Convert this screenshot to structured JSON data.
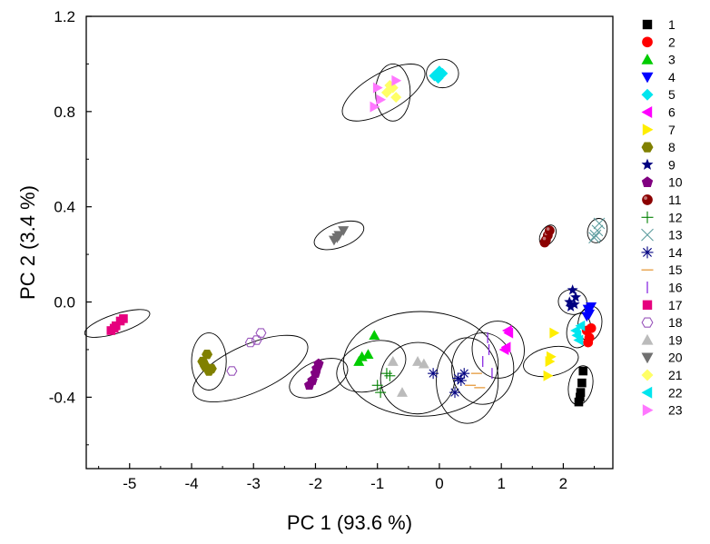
{
  "chart_data": {
    "type": "scatter",
    "title": "",
    "xlabel": "PC 1 (93.6 %)",
    "ylabel": "PC 2 (3.4 %)",
    "xlim": [
      -5.7,
      2.8
    ],
    "ylim": [
      -0.7,
      1.2
    ],
    "xticks": [
      -5,
      -4,
      -3,
      -2,
      -1,
      0,
      1,
      2
    ],
    "yticks": [
      -0.4,
      0.0,
      0.4,
      0.8,
      1.2
    ],
    "xtick_labels": [
      "-5",
      "-4",
      "-3",
      "-2",
      "-1",
      "0",
      "1",
      "2"
    ],
    "ytick_labels": [
      "-0.4",
      "0.0",
      "0.4",
      "0.8",
      "1.2"
    ],
    "grid": false,
    "legend_position": "right",
    "series": [
      {
        "name": "1",
        "marker": "square",
        "color": "#000000",
        "points": [
          [
            2.25,
            -0.42
          ],
          [
            2.28,
            -0.38
          ],
          [
            2.3,
            -0.34
          ],
          [
            2.32,
            -0.29
          ],
          [
            2.27,
            -0.4
          ]
        ]
      },
      {
        "name": "2",
        "marker": "circle",
        "color": "#ff0000",
        "points": [
          [
            2.38,
            -0.12
          ],
          [
            2.42,
            -0.15
          ],
          [
            2.45,
            -0.11
          ],
          [
            2.4,
            -0.17
          ]
        ]
      },
      {
        "name": "3",
        "marker": "triangle-up",
        "color": "#00cc00",
        "points": [
          [
            -1.3,
            -0.25
          ],
          [
            -1.15,
            -0.22
          ],
          [
            -1.05,
            -0.14
          ],
          [
            -1.25,
            -0.23
          ]
        ]
      },
      {
        "name": "4",
        "marker": "triangle-down",
        "color": "#0000ff",
        "points": [
          [
            2.4,
            -0.03
          ],
          [
            2.42,
            -0.05
          ],
          [
            2.45,
            -0.02
          ],
          [
            2.38,
            -0.06
          ]
        ]
      },
      {
        "name": "5",
        "marker": "diamond",
        "color": "#00e5ee",
        "points": [
          [
            -0.08,
            0.95
          ],
          [
            0.0,
            0.97
          ],
          [
            0.05,
            0.96
          ],
          [
            -0.02,
            0.94
          ]
        ]
      },
      {
        "name": "6",
        "marker": "triangle-left",
        "color": "#ff00ff",
        "points": [
          [
            1.05,
            -0.2
          ],
          [
            1.1,
            -0.12
          ],
          [
            1.08,
            -0.19
          ],
          [
            1.12,
            -0.13
          ]
        ]
      },
      {
        "name": "7",
        "marker": "triangle-right",
        "color": "#ffee00",
        "points": [
          [
            1.75,
            -0.31
          ],
          [
            1.8,
            -0.23
          ],
          [
            1.85,
            -0.13
          ],
          [
            1.78,
            -0.25
          ]
        ]
      },
      {
        "name": "8",
        "marker": "hexagon",
        "color": "#808000",
        "points": [
          [
            -3.82,
            -0.25
          ],
          [
            -3.75,
            -0.22
          ],
          [
            -3.68,
            -0.28
          ],
          [
            -3.78,
            -0.27
          ],
          [
            -3.72,
            -0.29
          ]
        ]
      },
      {
        "name": "9",
        "marker": "star",
        "color": "#000080",
        "points": [
          [
            2.1,
            0.0
          ],
          [
            2.15,
            0.05
          ],
          [
            2.2,
            0.02
          ],
          [
            2.12,
            -0.02
          ],
          [
            2.18,
            -0.01
          ]
        ]
      },
      {
        "name": "10",
        "marker": "pentagon",
        "color": "#800080",
        "points": [
          [
            -2.1,
            -0.35
          ],
          [
            -2.0,
            -0.3
          ],
          [
            -1.95,
            -0.26
          ],
          [
            -2.05,
            -0.33
          ],
          [
            -1.98,
            -0.28
          ]
        ]
      },
      {
        "name": "11",
        "marker": "ball",
        "color": "#8b0000",
        "points": [
          [
            1.7,
            0.25
          ],
          [
            1.75,
            0.28
          ],
          [
            1.78,
            0.3
          ],
          [
            1.72,
            0.26
          ]
        ]
      },
      {
        "name": "12",
        "marker": "plus",
        "color": "#008000",
        "points": [
          [
            -1.0,
            -0.35
          ],
          [
            -0.95,
            -0.38
          ],
          [
            -0.85,
            -0.3
          ],
          [
            -0.8,
            -0.31
          ]
        ]
      },
      {
        "name": "13",
        "marker": "x",
        "color": "#5f9ea0",
        "points": [
          [
            2.5,
            0.27
          ],
          [
            2.55,
            0.3
          ],
          [
            2.58,
            0.33
          ],
          [
            2.52,
            0.28
          ]
        ]
      },
      {
        "name": "14",
        "marker": "asterisk",
        "color": "#000080",
        "points": [
          [
            -0.1,
            -0.3
          ],
          [
            0.25,
            -0.38
          ],
          [
            0.3,
            -0.32
          ],
          [
            0.4,
            -0.3
          ],
          [
            0.35,
            -0.33
          ]
        ]
      },
      {
        "name": "15",
        "marker": "hline",
        "color": "#e69a3c",
        "points": [
          [
            0.5,
            -0.35
          ],
          [
            0.6,
            -0.3
          ],
          [
            0.65,
            -0.36
          ]
        ]
      },
      {
        "name": "16",
        "marker": "vline",
        "color": "#8a2be2",
        "points": [
          [
            0.7,
            -0.25
          ],
          [
            0.8,
            -0.2
          ],
          [
            0.85,
            -0.3
          ],
          [
            0.78,
            -0.15
          ]
        ]
      },
      {
        "name": "17",
        "marker": "square",
        "color": "#e6007e",
        "points": [
          [
            -5.3,
            -0.12
          ],
          [
            -5.22,
            -0.1
          ],
          [
            -5.15,
            -0.08
          ],
          [
            -5.1,
            -0.07
          ],
          [
            -5.25,
            -0.11
          ]
        ]
      },
      {
        "name": "18",
        "marker": "hexagon-open",
        "color": "#9955bb",
        "points": [
          [
            -3.35,
            -0.29
          ],
          [
            -3.05,
            -0.17
          ],
          [
            -2.95,
            -0.16
          ],
          [
            -2.88,
            -0.13
          ]
        ]
      },
      {
        "name": "19",
        "marker": "triangle-up",
        "color": "#bbbbbb",
        "points": [
          [
            -0.75,
            -0.25
          ],
          [
            -0.6,
            -0.38
          ],
          [
            -0.35,
            -0.25
          ],
          [
            -0.25,
            -0.26
          ]
        ]
      },
      {
        "name": "20",
        "marker": "triangle-down",
        "color": "#707070",
        "points": [
          [
            -1.7,
            0.26
          ],
          [
            -1.62,
            0.28
          ],
          [
            -1.55,
            0.3
          ],
          [
            -1.65,
            0.27
          ]
        ]
      },
      {
        "name": "21",
        "marker": "diamond",
        "color": "#ffff66",
        "points": [
          [
            -0.85,
            0.88
          ],
          [
            -0.75,
            0.9
          ],
          [
            -0.7,
            0.86
          ],
          [
            -0.8,
            0.91
          ]
        ]
      },
      {
        "name": "22",
        "marker": "triangle-left",
        "color": "#00e5ee",
        "points": [
          [
            2.2,
            -0.12
          ],
          [
            2.25,
            -0.16
          ],
          [
            2.28,
            -0.1
          ],
          [
            2.22,
            -0.14
          ]
        ]
      },
      {
        "name": "23",
        "marker": "triangle-right",
        "color": "#ff77ff",
        "points": [
          [
            -1.05,
            0.82
          ],
          [
            -1.0,
            0.9
          ],
          [
            -0.95,
            0.85
          ],
          [
            -0.7,
            0.93
          ]
        ]
      }
    ],
    "ellipses": [
      {
        "cx": -5.2,
        "cy": -0.09,
        "rx": 0.55,
        "ry": 0.04,
        "angle_deg": 18
      },
      {
        "cx": -3.72,
        "cy": -0.25,
        "rx": 0.28,
        "ry": 0.12,
        "angle_deg": 0
      },
      {
        "cx": -3.05,
        "cy": -0.28,
        "rx": 1.0,
        "ry": 0.1,
        "angle_deg": 24
      },
      {
        "cx": -1.95,
        "cy": -0.32,
        "rx": 0.5,
        "ry": 0.07,
        "angle_deg": 24
      },
      {
        "cx": -1.62,
        "cy": 0.28,
        "rx": 0.42,
        "ry": 0.05,
        "angle_deg": 20
      },
      {
        "cx": -1.1,
        "cy": -0.27,
        "rx": 0.58,
        "ry": 0.1,
        "angle_deg": 22
      },
      {
        "cx": -0.35,
        "cy": -0.32,
        "rx": 0.6,
        "ry": 0.15,
        "angle_deg": 8
      },
      {
        "cx": -0.3,
        "cy": -0.26,
        "rx": 1.25,
        "ry": 0.22,
        "angle_deg": 0
      },
      {
        "cx": 0.45,
        "cy": -0.33,
        "rx": 0.5,
        "ry": 0.18,
        "angle_deg": 0
      },
      {
        "cx": 0.7,
        "cy": -0.28,
        "rx": 0.5,
        "ry": 0.15,
        "angle_deg": 0
      },
      {
        "cx": 0.95,
        "cy": -0.2,
        "rx": 0.42,
        "ry": 0.12,
        "angle_deg": 8
      },
      {
        "cx": 1.8,
        "cy": -0.25,
        "rx": 0.45,
        "ry": 0.06,
        "angle_deg": 12
      },
      {
        "cx": 1.75,
        "cy": 0.28,
        "rx": 0.18,
        "ry": 0.03,
        "angle_deg": 60
      },
      {
        "cx": 2.28,
        "cy": -0.35,
        "rx": 0.32,
        "ry": 0.05,
        "angle_deg": 78
      },
      {
        "cx": 2.25,
        "cy": -0.12,
        "rx": 0.28,
        "ry": 0.05,
        "angle_deg": 80
      },
      {
        "cx": 2.15,
        "cy": 0.0,
        "rx": 0.2,
        "ry": 0.06,
        "angle_deg": 80
      },
      {
        "cx": 2.43,
        "cy": -0.09,
        "rx": 0.28,
        "ry": 0.05,
        "angle_deg": 82
      },
      {
        "cx": 2.55,
        "cy": 0.3,
        "rx": 0.2,
        "ry": 0.04,
        "angle_deg": 72
      },
      {
        "cx": -0.9,
        "cy": 0.88,
        "rx": 0.75,
        "ry": 0.08,
        "angle_deg": 30
      },
      {
        "cx": -0.75,
        "cy": 0.88,
        "rx": 0.28,
        "ry": 0.12,
        "angle_deg": 0
      },
      {
        "cx": 0.05,
        "cy": 0.96,
        "rx": 0.26,
        "ry": 0.06,
        "angle_deg": 0
      }
    ]
  }
}
